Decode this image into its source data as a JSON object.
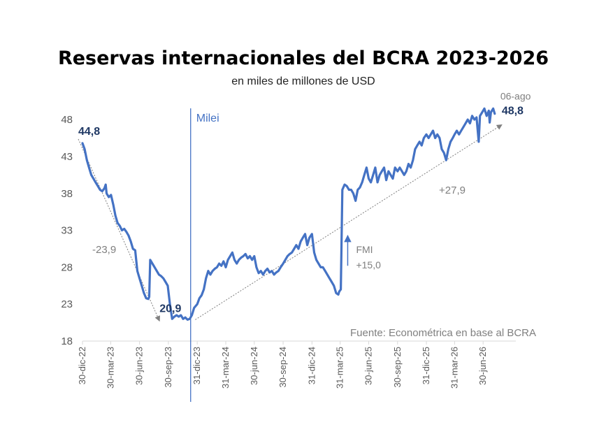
{
  "chart_data": {
    "type": "line",
    "title": "Reservas internacionales del BCRA 2023-2026",
    "subtitle": "en miles de millones de USD",
    "source": "Fuente: Econométrica en base al BCRA",
    "ylim": [
      18,
      50
    ],
    "yticks": [
      18,
      23,
      28,
      33,
      38,
      43,
      48
    ],
    "xlim": [
      "2022-12-30",
      "2026-09-20"
    ],
    "xticks": [
      "30-dic-22",
      "30-mar-23",
      "30-jun-23",
      "30-sep-23",
      "31-dic-23",
      "31-mar-24",
      "30-jun-24",
      "30-sep-24",
      "31-dic-24",
      "31-mar-25",
      "30-jun-25",
      "30-sep-25",
      "31-dic-25",
      "31-mar-26",
      "30-jun-26"
    ],
    "xtick_dates": [
      "2022-12-30",
      "2023-03-30",
      "2023-06-30",
      "2023-09-30",
      "2023-12-31",
      "2024-03-31",
      "2024-06-30",
      "2024-09-30",
      "2024-12-31",
      "2025-03-31",
      "2025-06-30",
      "2025-09-30",
      "2025-12-31",
      "2026-03-31",
      "2026-06-30"
    ],
    "grid": false,
    "color": "#4472C4",
    "series": [
      {
        "points": [
          [
            "2022-12-30",
            44.8
          ],
          [
            "2023-01-06",
            44.0
          ],
          [
            "2023-01-13",
            42.5
          ],
          [
            "2023-01-20",
            41.5
          ],
          [
            "2023-01-27",
            40.5
          ],
          [
            "2023-02-03",
            40.0
          ],
          [
            "2023-02-10",
            39.5
          ],
          [
            "2023-02-17",
            39.0
          ],
          [
            "2023-02-24",
            38.5
          ],
          [
            "2023-03-03",
            38.3
          ],
          [
            "2023-03-10",
            38.7
          ],
          [
            "2023-03-14",
            39.2
          ],
          [
            "2023-03-17",
            38.0
          ],
          [
            "2023-03-24",
            37.5
          ],
          [
            "2023-03-31",
            37.8
          ],
          [
            "2023-04-07",
            36.5
          ],
          [
            "2023-04-14",
            35.0
          ],
          [
            "2023-04-21",
            34.0
          ],
          [
            "2023-04-28",
            33.6
          ],
          [
            "2023-05-05",
            33.0
          ],
          [
            "2023-05-12",
            33.2
          ],
          [
            "2023-05-19",
            32.8
          ],
          [
            "2023-05-26",
            32.3
          ],
          [
            "2023-06-02",
            31.5
          ],
          [
            "2023-06-09",
            30.5
          ],
          [
            "2023-06-16",
            30.3
          ],
          [
            "2023-06-23",
            27.5
          ],
          [
            "2023-06-30",
            26.5
          ],
          [
            "2023-07-07",
            25.5
          ],
          [
            "2023-07-14",
            24.5
          ],
          [
            "2023-07-21",
            23.8
          ],
          [
            "2023-07-28",
            23.7
          ],
          [
            "2023-07-31",
            24.0
          ],
          [
            "2023-08-03",
            29.0
          ],
          [
            "2023-08-10",
            28.5
          ],
          [
            "2023-08-17",
            28.0
          ],
          [
            "2023-08-24",
            27.5
          ],
          [
            "2023-08-31",
            27.0
          ],
          [
            "2023-09-07",
            26.8
          ],
          [
            "2023-09-14",
            26.5
          ],
          [
            "2023-09-21",
            26.0
          ],
          [
            "2023-09-28",
            25.5
          ],
          [
            "2023-10-05",
            23.0
          ],
          [
            "2023-10-12",
            21.0
          ],
          [
            "2023-10-19",
            21.3
          ],
          [
            "2023-10-26",
            21.5
          ],
          [
            "2023-11-02",
            21.3
          ],
          [
            "2023-11-09",
            21.5
          ],
          [
            "2023-11-16",
            21.0
          ],
          [
            "2023-11-23",
            21.2
          ],
          [
            "2023-11-30",
            20.9
          ],
          [
            "2023-12-07",
            21.0
          ],
          [
            "2023-12-14",
            21.5
          ],
          [
            "2023-12-21",
            22.5
          ],
          [
            "2023-12-31",
            23.0
          ],
          [
            "2024-01-07",
            23.8
          ],
          [
            "2024-01-14",
            24.2
          ],
          [
            "2024-01-21",
            25.0
          ],
          [
            "2024-01-28",
            26.5
          ],
          [
            "2024-02-04",
            27.5
          ],
          [
            "2024-02-11",
            27.0
          ],
          [
            "2024-02-18",
            27.5
          ],
          [
            "2024-02-25",
            27.8
          ],
          [
            "2024-03-03",
            28.0
          ],
          [
            "2024-03-10",
            28.5
          ],
          [
            "2024-03-17",
            28.2
          ],
          [
            "2024-03-24",
            28.8
          ],
          [
            "2024-03-31",
            28.0
          ],
          [
            "2024-04-07",
            29.0
          ],
          [
            "2024-04-14",
            29.5
          ],
          [
            "2024-04-21",
            30.0
          ],
          [
            "2024-04-28",
            29.0
          ],
          [
            "2024-05-05",
            28.5
          ],
          [
            "2024-05-12",
            29.0
          ],
          [
            "2024-05-19",
            29.3
          ],
          [
            "2024-05-26",
            29.5
          ],
          [
            "2024-06-02",
            29.8
          ],
          [
            "2024-06-09",
            29.2
          ],
          [
            "2024-06-16",
            29.5
          ],
          [
            "2024-06-23",
            29.0
          ],
          [
            "2024-06-30",
            29.5
          ],
          [
            "2024-07-07",
            28.0
          ],
          [
            "2024-07-14",
            27.2
          ],
          [
            "2024-07-21",
            27.5
          ],
          [
            "2024-07-28",
            27.0
          ],
          [
            "2024-08-04",
            27.5
          ],
          [
            "2024-08-11",
            27.8
          ],
          [
            "2024-08-18",
            27.3
          ],
          [
            "2024-08-25",
            27.5
          ],
          [
            "2024-09-01",
            27.0
          ],
          [
            "2024-09-08",
            27.3
          ],
          [
            "2024-09-15",
            27.5
          ],
          [
            "2024-09-22",
            28.0
          ],
          [
            "2024-09-30",
            28.5
          ],
          [
            "2024-10-07",
            29.0
          ],
          [
            "2024-10-14",
            29.5
          ],
          [
            "2024-10-21",
            29.8
          ],
          [
            "2024-10-28",
            30.0
          ],
          [
            "2024-11-04",
            30.5
          ],
          [
            "2024-11-11",
            31.0
          ],
          [
            "2024-11-18",
            30.5
          ],
          [
            "2024-11-25",
            31.5
          ],
          [
            "2024-12-02",
            32.0
          ],
          [
            "2024-12-09",
            32.5
          ],
          [
            "2024-12-16",
            31.0
          ],
          [
            "2024-12-23",
            32.0
          ],
          [
            "2024-12-31",
            32.5
          ],
          [
            "2025-01-07",
            30.0
          ],
          [
            "2025-01-14",
            29.0
          ],
          [
            "2025-01-21",
            28.5
          ],
          [
            "2025-01-28",
            28.0
          ],
          [
            "2025-02-04",
            28.0
          ],
          [
            "2025-02-11",
            27.5
          ],
          [
            "2025-02-18",
            27.0
          ],
          [
            "2025-02-25",
            26.5
          ],
          [
            "2025-03-04",
            26.0
          ],
          [
            "2025-03-11",
            25.5
          ],
          [
            "2025-03-18",
            24.5
          ],
          [
            "2025-03-25",
            24.3
          ],
          [
            "2025-03-28",
            24.7
          ],
          [
            "2025-04-02",
            25.0
          ],
          [
            "2025-04-07",
            38.5
          ],
          [
            "2025-04-14",
            39.2
          ],
          [
            "2025-04-21",
            39.0
          ],
          [
            "2025-04-28",
            38.5
          ],
          [
            "2025-05-05",
            38.5
          ],
          [
            "2025-05-12",
            38.0
          ],
          [
            "2025-05-19",
            37.0
          ],
          [
            "2025-05-26",
            38.5
          ],
          [
            "2025-06-02",
            38.8
          ],
          [
            "2025-06-09",
            39.5
          ],
          [
            "2025-06-16",
            40.5
          ],
          [
            "2025-06-23",
            41.5
          ],
          [
            "2025-06-30",
            40.0
          ],
          [
            "2025-07-07",
            39.5
          ],
          [
            "2025-07-14",
            40.5
          ],
          [
            "2025-07-21",
            41.5
          ],
          [
            "2025-07-28",
            39.5
          ],
          [
            "2025-08-04",
            40.5
          ],
          [
            "2025-08-11",
            41.0
          ],
          [
            "2025-08-18",
            41.5
          ],
          [
            "2025-08-25",
            39.8
          ],
          [
            "2025-09-01",
            41.0
          ],
          [
            "2025-09-08",
            40.5
          ],
          [
            "2025-09-15",
            40.0
          ],
          [
            "2025-09-22",
            41.5
          ],
          [
            "2025-09-30",
            41.0
          ],
          [
            "2025-10-07",
            41.5
          ],
          [
            "2025-10-14",
            41.0
          ],
          [
            "2025-10-21",
            40.5
          ],
          [
            "2025-10-28",
            41.0
          ],
          [
            "2025-11-04",
            42.0
          ],
          [
            "2025-11-11",
            41.5
          ],
          [
            "2025-11-18",
            42.5
          ],
          [
            "2025-11-25",
            44.0
          ],
          [
            "2025-12-02",
            44.5
          ],
          [
            "2025-12-09",
            45.0
          ],
          [
            "2025-12-16",
            44.5
          ],
          [
            "2025-12-23",
            45.5
          ],
          [
            "2025-12-31",
            46.0
          ],
          [
            "2026-01-07",
            45.5
          ],
          [
            "2026-01-14",
            46.0
          ],
          [
            "2026-01-21",
            46.5
          ],
          [
            "2026-01-28",
            45.5
          ],
          [
            "2026-02-04",
            46.0
          ],
          [
            "2026-02-11",
            45.5
          ],
          [
            "2026-02-18",
            44.0
          ],
          [
            "2026-02-25",
            43.5
          ],
          [
            "2026-03-04",
            42.5
          ],
          [
            "2026-03-11",
            44.0
          ],
          [
            "2026-03-18",
            45.0
          ],
          [
            "2026-03-25",
            45.5
          ],
          [
            "2026-03-31",
            46.0
          ],
          [
            "2026-04-07",
            46.5
          ],
          [
            "2026-04-14",
            46.0
          ],
          [
            "2026-04-21",
            46.5
          ],
          [
            "2026-04-28",
            47.0
          ],
          [
            "2026-05-05",
            47.5
          ],
          [
            "2026-05-12",
            48.0
          ],
          [
            "2026-05-19",
            47.5
          ],
          [
            "2026-05-26",
            48.5
          ],
          [
            "2026-06-02",
            48.0
          ],
          [
            "2026-06-09",
            48.3
          ],
          [
            "2026-06-16",
            45.0
          ],
          [
            "2026-06-20",
            48.5
          ],
          [
            "2026-06-27",
            49.0
          ],
          [
            "2026-07-04",
            49.5
          ],
          [
            "2026-07-11",
            48.5
          ],
          [
            "2026-07-18",
            49.2
          ],
          [
            "2026-07-21",
            47.6
          ],
          [
            "2026-07-25",
            49.0
          ],
          [
            "2026-08-01",
            49.5
          ],
          [
            "2026-08-06",
            48.8
          ]
        ]
      }
    ],
    "annotations": [
      {
        "text": "44,8",
        "x": "2022-12-30",
        "y": 44.8
      },
      {
        "text": "20,9",
        "x": "2023-11-30",
        "y": 20.9
      },
      {
        "text": "48,8",
        "x": "2026-08-06",
        "y": 48.8
      },
      {
        "text": "06-ago",
        "x": "2026-08-06",
        "y": 48.8
      },
      {
        "text": "Milei",
        "x": "2023-12-10"
      },
      {
        "text": "-23,9"
      },
      {
        "text": "+27,9"
      },
      {
        "text": "FMI"
      },
      {
        "text": "+15,0"
      }
    ],
    "trend_lines": [
      {
        "from": [
          "2022-12-30",
          44.8
        ],
        "to": [
          "2023-11-30",
          20.9
        ],
        "change": "-23,9"
      },
      {
        "from": [
          "2023-12-07",
          20.9
        ],
        "to": [
          "2026-08-20",
          47.5
        ],
        "change": "+27,9"
      }
    ],
    "event_line": {
      "x": "2023-12-10",
      "label": "Milei"
    },
    "imf_arrow": {
      "label": "FMI",
      "change": "+15,0",
      "from": 28.2,
      "to": 32.3
    }
  }
}
